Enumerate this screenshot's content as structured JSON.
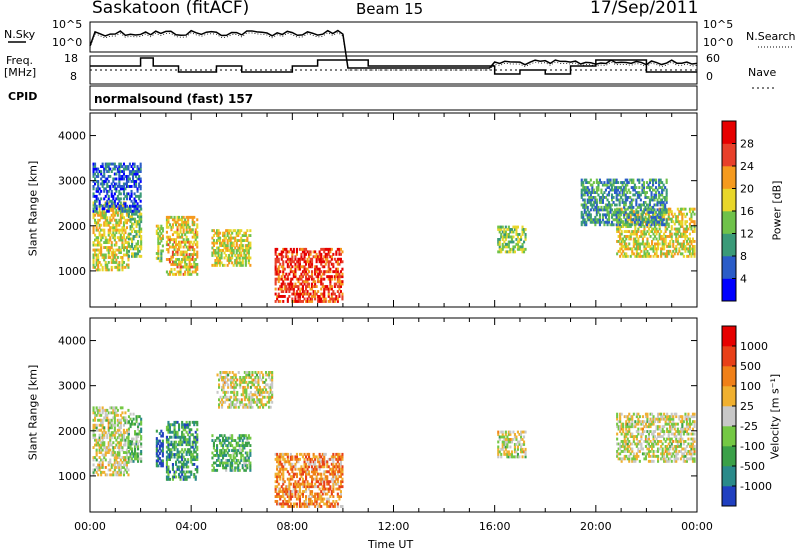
{
  "header": {
    "station": "Saskatoon (fitACF)",
    "beam": "Beam 15",
    "date": "17/Sep/2011"
  },
  "top_panels": {
    "nsky_label": "N.Sky",
    "nsearch_label": "N.Search",
    "nsky_ticks": [
      "10^5",
      "10^0"
    ],
    "nsearch_ticks": [
      "10^5",
      "10^0"
    ],
    "freq_label": "Freq.",
    "freq_unit": "[MHz]",
    "freq_ticks": [
      "18",
      "8"
    ],
    "nave_label": "Nave",
    "nave_ticks": [
      "60",
      "0"
    ],
    "cpid_label": "CPID",
    "cpid_value": "normalsound (fast) 157"
  },
  "chart_data": [
    {
      "type": "heatmap",
      "name": "power-panel",
      "ylabel": "Slant Range [km]",
      "y_ticks": [
        "1000",
        "2000",
        "3000",
        "4000"
      ],
      "ylim": [
        200,
        4500
      ],
      "colorbar_label": "Power [dB]",
      "colorbar_ticks": [
        "4",
        "8",
        "12",
        "16",
        "20",
        "24",
        "28"
      ],
      "colors": [
        "#0000ff",
        "#2a5cc8",
        "#3a9a78",
        "#6fc24a",
        "#e8d62a",
        "#f59a1e",
        "#e8402a",
        "#e60000"
      ],
      "regions": [
        {
          "t": [
            0.1,
            1.5
          ],
          "r": [
            1000,
            2500
          ],
          "level": 0.55
        },
        {
          "t": [
            1.5,
            2.0
          ],
          "r": [
            1300,
            2400
          ],
          "level": 0.45
        },
        {
          "t": [
            2.6,
            2.9
          ],
          "r": [
            1200,
            2000
          ],
          "level": 0.5
        },
        {
          "t": [
            3.0,
            4.2
          ],
          "r": [
            900,
            2200
          ],
          "level": 0.6
        },
        {
          "t": [
            4.8,
            6.3
          ],
          "r": [
            1100,
            1900
          ],
          "level": 0.55
        },
        {
          "t": [
            7.3,
            10.0
          ],
          "r": [
            300,
            1500
          ],
          "level": 0.85
        },
        {
          "t": [
            16.1,
            17.2
          ],
          "r": [
            1400,
            2000
          ],
          "level": 0.45
        },
        {
          "t": [
            20.8,
            23.9
          ],
          "r": [
            1300,
            2400
          ],
          "level": 0.55
        },
        {
          "t": [
            0.1,
            2.0
          ],
          "r": [
            2300,
            3400
          ],
          "level": 0.2
        },
        {
          "t": [
            19.4,
            22.8
          ],
          "r": [
            2000,
            3000
          ],
          "level": 0.3
        }
      ]
    },
    {
      "type": "heatmap",
      "name": "velocity-panel",
      "ylabel": "Slant Range [km]",
      "y_ticks": [
        "1000",
        "2000",
        "3000",
        "4000"
      ],
      "ylim": [
        200,
        4500
      ],
      "xlabel": "Time UT",
      "x_ticks": [
        "00:00",
        "04:00",
        "08:00",
        "12:00",
        "16:00",
        "20:00",
        "00:00"
      ],
      "xlim": [
        0,
        24
      ],
      "colorbar_label": "Velocity [m s⁻¹]",
      "colorbar_ticks": [
        "1000",
        "500",
        "100",
        "25",
        "-25",
        "-100",
        "-500",
        "-1000"
      ],
      "colors": [
        "#2040c0",
        "#2a8a8a",
        "#3aa048",
        "#74c844",
        "#c8c8c8",
        "#f0b030",
        "#f08018",
        "#e84018",
        "#e60000"
      ],
      "regions": [
        {
          "t": [
            0.1,
            1.5
          ],
          "r": [
            1000,
            2500
          ],
          "level": 0.5
        },
        {
          "t": [
            1.5,
            2.0
          ],
          "r": [
            1300,
            2400
          ],
          "level": 0.35
        },
        {
          "t": [
            2.6,
            2.9
          ],
          "r": [
            1200,
            2000
          ],
          "level": 0.1
        },
        {
          "t": [
            3.0,
            4.2
          ],
          "r": [
            900,
            2200
          ],
          "level": 0.25
        },
        {
          "t": [
            4.8,
            6.3
          ],
          "r": [
            1100,
            1900
          ],
          "level": 0.3
        },
        {
          "t": [
            7.3,
            10.0
          ],
          "r": [
            300,
            1500
          ],
          "level": 0.7
        },
        {
          "t": [
            16.1,
            17.2
          ],
          "r": [
            1400,
            2000
          ],
          "level": 0.5
        },
        {
          "t": [
            20.8,
            23.9
          ],
          "r": [
            1300,
            2400
          ],
          "level": 0.5
        },
        {
          "t": [
            5.0,
            7.2
          ],
          "r": [
            2500,
            3300
          ],
          "level": 0.5
        }
      ]
    }
  ]
}
